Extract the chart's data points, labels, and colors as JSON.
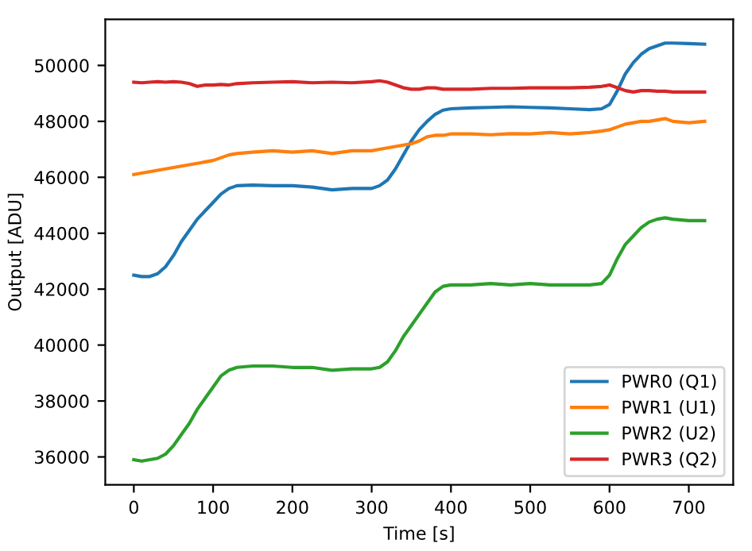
{
  "chart_data": {
    "type": "line",
    "xlabel": "Time [s]",
    "ylabel": "Output [ADU]",
    "xlim": [
      -36,
      756
    ],
    "ylim": [
      35000,
      51650
    ],
    "xticks": [
      0,
      100,
      200,
      300,
      400,
      500,
      600,
      700
    ],
    "yticks": [
      36000,
      38000,
      40000,
      42000,
      44000,
      46000,
      48000,
      50000
    ],
    "grid": false,
    "legend": "bottom right",
    "line_style": "solid",
    "marker": "none",
    "x": [
      0,
      10,
      20,
      30,
      40,
      50,
      60,
      70,
      80,
      90,
      100,
      110,
      120,
      130,
      150,
      175,
      200,
      225,
      250,
      275,
      300,
      310,
      320,
      330,
      340,
      350,
      360,
      370,
      380,
      390,
      400,
      425,
      450,
      475,
      500,
      525,
      550,
      575,
      590,
      600,
      610,
      620,
      630,
      640,
      650,
      660,
      670,
      680,
      700,
      720
    ],
    "series": [
      {
        "name": "PWR0 (Q1)",
        "color": "#1f77b4",
        "values": [
          42500,
          42450,
          42450,
          42550,
          42800,
          43200,
          43700,
          44100,
          44500,
          44800,
          45100,
          45400,
          45600,
          45700,
          45720,
          45700,
          45700,
          45650,
          45550,
          45600,
          45600,
          45700,
          45900,
          46300,
          46800,
          47300,
          47700,
          48000,
          48250,
          48400,
          48450,
          48480,
          48500,
          48520,
          48500,
          48480,
          48450,
          48420,
          48450,
          48600,
          49100,
          49700,
          50100,
          50400,
          50600,
          50700,
          50800,
          50800,
          50780,
          50760
        ]
      },
      {
        "name": "PWR1 (U1)",
        "color": "#ff7f0e",
        "values": [
          46100,
          46150,
          46200,
          46250,
          46300,
          46350,
          46400,
          46450,
          46500,
          46550,
          46600,
          46700,
          46800,
          46850,
          46900,
          46950,
          46900,
          46950,
          46850,
          46950,
          46950,
          47000,
          47050,
          47100,
          47150,
          47200,
          47300,
          47450,
          47500,
          47500,
          47550,
          47550,
          47520,
          47560,
          47550,
          47600,
          47550,
          47600,
          47650,
          47700,
          47800,
          47900,
          47950,
          48000,
          48000,
          48050,
          48100,
          48000,
          47950,
          48000
        ]
      },
      {
        "name": "PWR2 (U2)",
        "color": "#2ca02c",
        "values": [
          35900,
          35850,
          35900,
          35950,
          36100,
          36400,
          36800,
          37200,
          37700,
          38100,
          38500,
          38900,
          39100,
          39200,
          39250,
          39250,
          39200,
          39200,
          39100,
          39150,
          39150,
          39200,
          39400,
          39800,
          40300,
          40700,
          41100,
          41500,
          41900,
          42100,
          42150,
          42150,
          42200,
          42150,
          42200,
          42150,
          42150,
          42150,
          42200,
          42500,
          43100,
          43600,
          43900,
          44200,
          44400,
          44500,
          44550,
          44500,
          44450,
          44450
        ]
      },
      {
        "name": "PWR3 (Q2)",
        "color": "#d62728",
        "values": [
          49400,
          49380,
          49400,
          49420,
          49400,
          49420,
          49400,
          49350,
          49250,
          49300,
          49300,
          49320,
          49300,
          49350,
          49380,
          49400,
          49420,
          49380,
          49400,
          49380,
          49420,
          49450,
          49400,
          49300,
          49200,
          49150,
          49150,
          49200,
          49200,
          49150,
          49150,
          49150,
          49180,
          49180,
          49200,
          49200,
          49200,
          49220,
          49250,
          49300,
          49200,
          49100,
          49050,
          49100,
          49100,
          49080,
          49080,
          49050,
          49050,
          49050
        ]
      }
    ]
  }
}
